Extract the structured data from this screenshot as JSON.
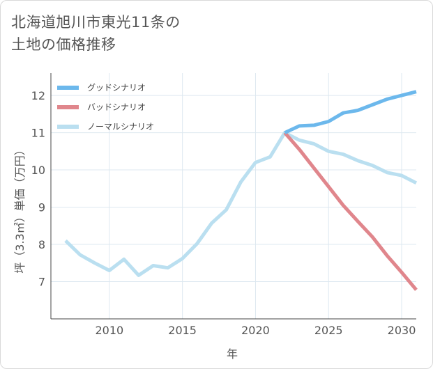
{
  "title_lines": [
    "北海道旭川市東光11条の",
    "土地の価格推移"
  ],
  "chart_data": {
    "type": "line",
    "title": "北海道旭川市東光11条の土地の価格推移",
    "xlabel": "年",
    "ylabel": "坪（3.3㎡）単価（万円）",
    "xlim": [
      2006,
      2031
    ],
    "ylim": [
      6,
      12.6
    ],
    "x_ticks": [
      2010,
      2015,
      2020,
      2025,
      2030
    ],
    "y_ticks": [
      7,
      8,
      9,
      10,
      11,
      12
    ],
    "grid": true,
    "legend_position": "top-left",
    "series": [
      {
        "name": "グッドシナリオ",
        "color": "#6cb8ec",
        "x": [
          2022,
          2023,
          2024,
          2025,
          2026,
          2027,
          2028,
          2029,
          2030,
          2031
        ],
        "values": [
          11.0,
          11.18,
          11.2,
          11.3,
          11.53,
          11.6,
          11.75,
          11.9,
          12.0,
          12.1
        ]
      },
      {
        "name": "バッドシナリオ",
        "color": "#e0868c",
        "x": [
          2022,
          2023,
          2024,
          2025,
          2026,
          2027,
          2028,
          2029,
          2030,
          2031
        ],
        "values": [
          11.0,
          10.55,
          10.05,
          9.55,
          9.05,
          8.62,
          8.2,
          7.7,
          7.25,
          6.78
        ]
      },
      {
        "name": "ノーマルシナリオ",
        "color": "#badff0",
        "x": [
          2007,
          2008,
          2009,
          2010,
          2011,
          2012,
          2013,
          2014,
          2015,
          2016,
          2017,
          2018,
          2019,
          2020,
          2021,
          2022,
          2023,
          2024,
          2025,
          2026,
          2027,
          2028,
          2029,
          2030,
          2031
        ],
        "values": [
          8.1,
          7.72,
          7.5,
          7.3,
          7.6,
          7.17,
          7.43,
          7.37,
          7.62,
          8.02,
          8.57,
          8.93,
          9.68,
          10.2,
          10.35,
          11.0,
          10.8,
          10.7,
          10.5,
          10.42,
          10.25,
          10.12,
          9.93,
          9.85,
          9.65
        ]
      }
    ]
  }
}
